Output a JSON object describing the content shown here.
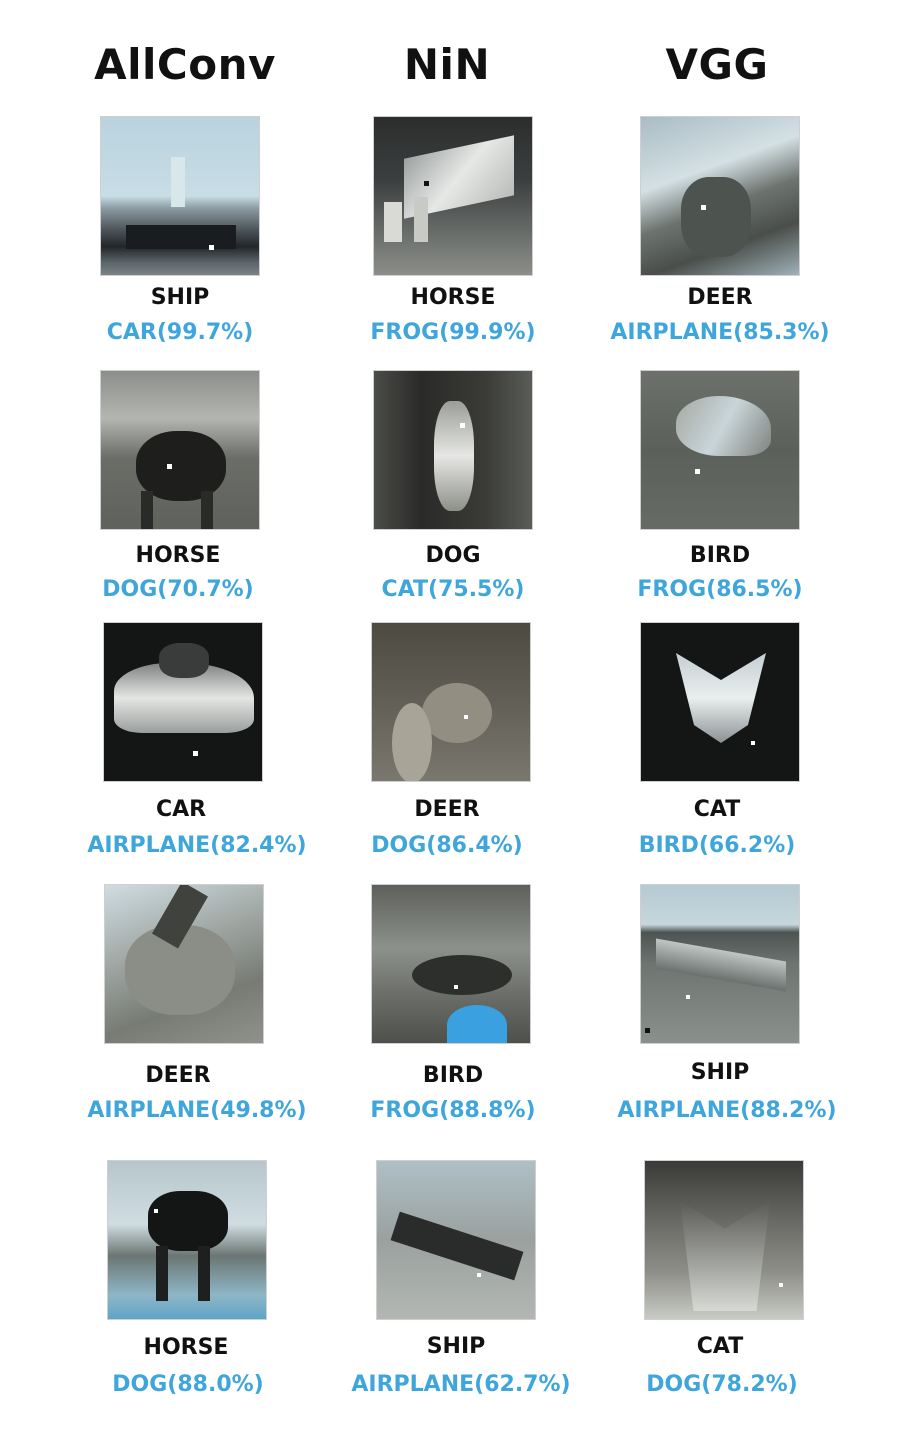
{
  "columns": [
    "AllConv",
    "NiN",
    "VGG"
  ],
  "pred_color": "#3fa6dc",
  "rows": [
    {
      "cells": [
        {
          "true_label": "SHIP",
          "prediction": "CAR(99.7%)"
        },
        {
          "true_label": "HORSE",
          "prediction": "FROG(99.9%)"
        },
        {
          "true_label": "DEER",
          "prediction": "AIRPLANE(85.3%)"
        }
      ]
    },
    {
      "cells": [
        {
          "true_label": "HORSE",
          "prediction": "DOG(70.7%)"
        },
        {
          "true_label": "DOG",
          "prediction": "CAT(75.5%)"
        },
        {
          "true_label": "BIRD",
          "prediction": "FROG(86.5%)"
        }
      ]
    },
    {
      "cells": [
        {
          "true_label": "CAR",
          "prediction": "AIRPLANE(82.4%)"
        },
        {
          "true_label": "DEER",
          "prediction": "DOG(86.4%)"
        },
        {
          "true_label": "CAT",
          "prediction": "BIRD(66.2%)"
        }
      ]
    },
    {
      "cells": [
        {
          "true_label": "DEER",
          "prediction": "AIRPLANE(49.8%)"
        },
        {
          "true_label": "BIRD",
          "prediction": "FROG(88.8%)"
        },
        {
          "true_label": "SHIP",
          "prediction": "AIRPLANE(88.2%)"
        }
      ]
    },
    {
      "cells": [
        {
          "true_label": "HORSE",
          "prediction": "DOG(88.0%)"
        },
        {
          "true_label": "SHIP",
          "prediction": "AIRPLANE(62.7%)"
        },
        {
          "true_label": "CAT",
          "prediction": "DOG(78.2%)"
        }
      ]
    }
  ]
}
